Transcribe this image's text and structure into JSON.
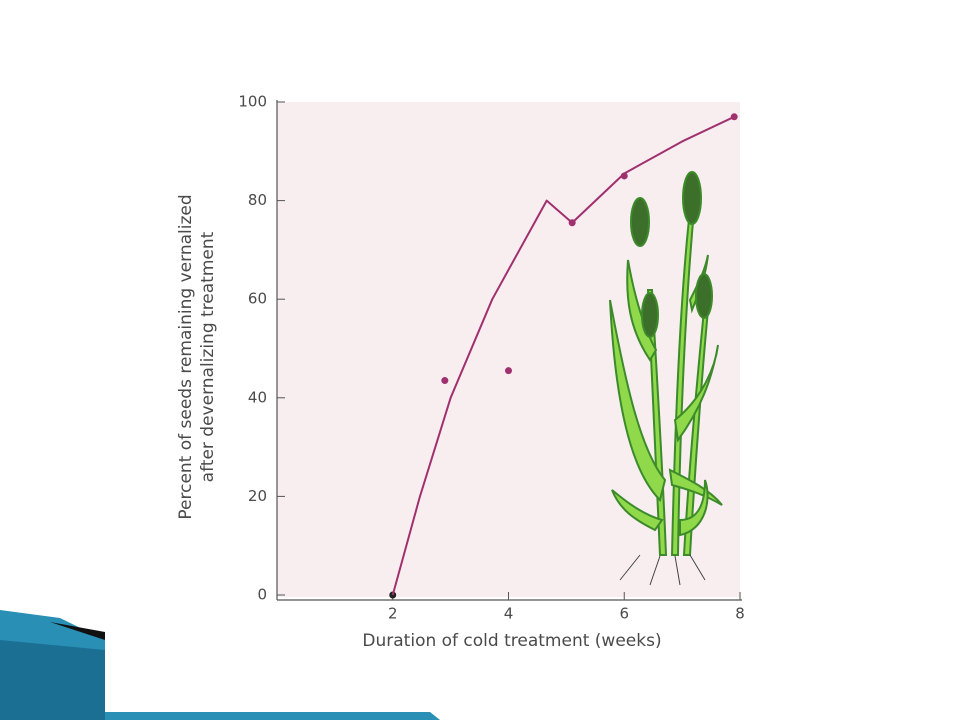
{
  "chart_data": {
    "type": "scatter",
    "xlabel": "Duration of cold treatment (weeks)",
    "ylabel": [
      "Percent of seeds remaining vernalized",
      "after devernalizing treatment"
    ],
    "xlim": [
      0,
      8
    ],
    "ylim": [
      0,
      100
    ],
    "xticks": [
      2,
      4,
      6,
      8
    ],
    "yticks": [
      0,
      20,
      40,
      60,
      80,
      100
    ],
    "series": [
      {
        "mode": "markers",
        "color": "#a0306e",
        "colors": [
          "#222222",
          "#a0306e",
          "#a0306e",
          "#a0306e",
          "#a0306e",
          "#a0306e"
        ],
        "x": [
          2,
          2.9,
          4,
          5.1,
          6,
          7.9
        ],
        "values": [
          0,
          43.5,
          45.5,
          75.5,
          85,
          97
        ]
      },
      {
        "mode": "line",
        "color": "#a0306e",
        "x": [
          2,
          2.47,
          3.0,
          3.72,
          4.66,
          5.1,
          6,
          7,
          7.9
        ],
        "values": [
          0,
          20,
          40,
          60,
          80,
          75.5,
          85.5,
          92,
          97
        ]
      }
    ]
  }
}
